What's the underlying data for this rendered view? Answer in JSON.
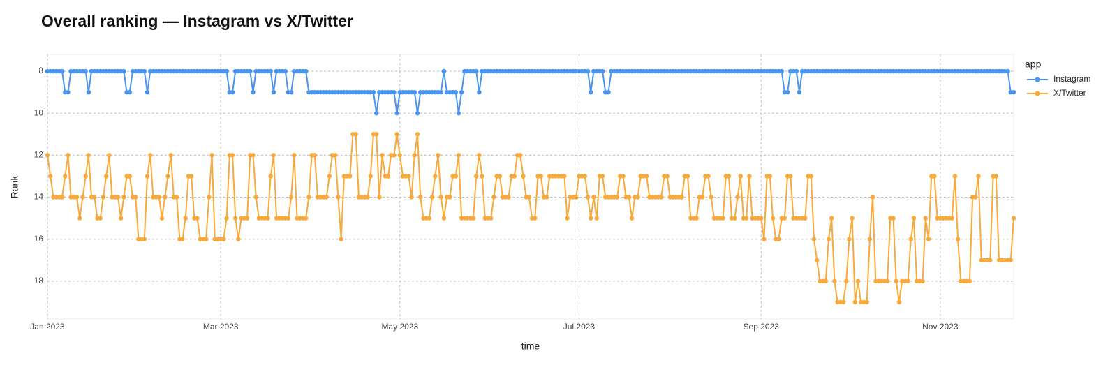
{
  "chart_data": {
    "type": "line",
    "title": "Overall ranking — Instagram vs X/Twitter",
    "x_label": "time",
    "y_label": "Rank",
    "legend_title": "app",
    "legend": "right",
    "xlim": [
      0,
      329
    ],
    "xticks": [
      {
        "value": 0,
        "label": "Jan 2023"
      },
      {
        "value": 59,
        "label": "Mar 2023"
      },
      {
        "value": 120,
        "label": "May 2023"
      },
      {
        "value": 181,
        "label": "Jul 2023"
      },
      {
        "value": 243,
        "label": "Sep 2023"
      },
      {
        "value": 304,
        "label": "Nov 2023"
      }
    ],
    "ylim": [
      7.2,
      19.8
    ],
    "y_reversed": true,
    "yticks": [
      8,
      10,
      12,
      14,
      16,
      18
    ],
    "grid": true,
    "series": [
      {
        "name": "Instagram",
        "color": "#4a94ee",
        "values": [
          8,
          8,
          8,
          8,
          8,
          8,
          9,
          9,
          8,
          8,
          8,
          8,
          8,
          8,
          9,
          8,
          8,
          8,
          8,
          8,
          8,
          8,
          8,
          8,
          8,
          8,
          8,
          9,
          9,
          8,
          8,
          8,
          8,
          8,
          9,
          8,
          8,
          8,
          8,
          8,
          8,
          8,
          8,
          8,
          8,
          8,
          8,
          8,
          8,
          8,
          8,
          8,
          8,
          8,
          8,
          8,
          8,
          8,
          8,
          8,
          8,
          8,
          9,
          9,
          8,
          8,
          8,
          8,
          8,
          8,
          9,
          8,
          8,
          8,
          8,
          8,
          8,
          9,
          8,
          8,
          8,
          8,
          9,
          9,
          8,
          8,
          8,
          8,
          8,
          9,
          9,
          9,
          9,
          9,
          9,
          9,
          9,
          9,
          9,
          9,
          9,
          9,
          9,
          9,
          9,
          9,
          9,
          9,
          9,
          9,
          9,
          9,
          10,
          9,
          9,
          9,
          9,
          9,
          9,
          10,
          9,
          9,
          9,
          9,
          9,
          9,
          10,
          9,
          9,
          9,
          9,
          9,
          9,
          9,
          9,
          8,
          9,
          9,
          9,
          9,
          10,
          9,
          8,
          8,
          8,
          8,
          8,
          9,
          8,
          8,
          8,
          8,
          8,
          8,
          8,
          8,
          8,
          8,
          8,
          8,
          8,
          8,
          8,
          8,
          8,
          8,
          8,
          8,
          8,
          8,
          8,
          8,
          8,
          8,
          8,
          8,
          8,
          8,
          8,
          8,
          8,
          8,
          8,
          8,
          8,
          9,
          8,
          8,
          8,
          8,
          9,
          9,
          8,
          8,
          8,
          8,
          8,
          8,
          8,
          8,
          8,
          8,
          8,
          8,
          8,
          8,
          8,
          8,
          8,
          8,
          8,
          8,
          8,
          8,
          8,
          8,
          8,
          8,
          8,
          8,
          8,
          8,
          8,
          8,
          8,
          8,
          8,
          8,
          8,
          8,
          8,
          8,
          8,
          8,
          8,
          8,
          8,
          8,
          8,
          8,
          8,
          8,
          8,
          8,
          8,
          8,
          8,
          8,
          8,
          8,
          8,
          9,
          9,
          8,
          8,
          8,
          9,
          8,
          8,
          8,
          8,
          8,
          8,
          8,
          8,
          8,
          8,
          8,
          8,
          8,
          8,
          8,
          8,
          8,
          8,
          8,
          8,
          8,
          8,
          8,
          8,
          8,
          8,
          8,
          8,
          8,
          8,
          8,
          8,
          8,
          8,
          8,
          8,
          8,
          8,
          8,
          8,
          8,
          8,
          8,
          8,
          8,
          8,
          8,
          8,
          8,
          8,
          8,
          8,
          8,
          8,
          8,
          8,
          8,
          8,
          8,
          8,
          8,
          8,
          8,
          8,
          8,
          8,
          8,
          8,
          8,
          8,
          8,
          9,
          9
        ]
      },
      {
        "name": "X/Twitter",
        "color": "#f7a93c",
        "values": [
          12,
          13,
          14,
          14,
          14,
          14,
          13,
          12,
          14,
          14,
          14,
          15,
          14,
          13,
          12,
          14,
          14,
          15,
          15,
          14,
          13,
          12,
          14,
          14,
          14,
          15,
          14,
          13,
          13,
          14,
          14,
          16,
          16,
          16,
          13,
          12,
          14,
          14,
          14,
          15,
          14,
          13,
          12,
          14,
          14,
          16,
          16,
          15,
          13,
          13,
          15,
          15,
          16,
          16,
          16,
          14,
          12,
          16,
          16,
          16,
          16,
          15,
          12,
          12,
          15,
          16,
          15,
          15,
          15,
          12,
          12,
          14,
          15,
          15,
          15,
          15,
          13,
          12,
          15,
          15,
          15,
          15,
          15,
          14,
          12,
          15,
          15,
          15,
          15,
          14,
          12,
          12,
          14,
          14,
          14,
          14,
          13,
          12,
          12,
          14,
          16,
          13,
          13,
          13,
          11,
          11,
          14,
          14,
          14,
          14,
          13,
          11,
          11,
          14,
          12,
          13,
          13,
          12,
          12,
          11,
          12,
          13,
          13,
          13,
          14,
          12,
          11,
          14,
          15,
          15,
          15,
          14,
          13,
          12,
          14,
          15,
          14,
          14,
          13,
          13,
          12,
          15,
          15,
          15,
          15,
          15,
          13,
          12,
          13,
          15,
          15,
          15,
          14,
          13,
          13,
          14,
          14,
          14,
          13,
          13,
          12,
          12,
          13,
          14,
          14,
          15,
          15,
          13,
          13,
          14,
          14,
          13,
          13,
          13,
          13,
          13,
          13,
          15,
          14,
          14,
          14,
          13,
          13,
          13,
          14,
          15,
          14,
          15,
          13,
          13,
          14,
          14,
          14,
          14,
          14,
          13,
          13,
          14,
          14,
          15,
          14,
          14,
          13,
          13,
          13,
          14,
          14,
          14,
          14,
          14,
          13,
          13,
          14,
          14,
          14,
          14,
          14,
          13,
          13,
          15,
          15,
          15,
          14,
          14,
          13,
          13,
          14,
          15,
          15,
          15,
          15,
          13,
          13,
          15,
          15,
          14,
          13,
          15,
          15,
          13,
          15,
          15,
          15,
          15,
          16,
          13,
          13,
          15,
          16,
          16,
          15,
          15,
          13,
          13,
          15,
          15,
          15,
          15,
          15,
          13,
          13,
          16,
          17,
          18,
          18,
          18,
          16,
          15,
          18,
          19,
          19,
          19,
          18,
          16,
          15,
          19,
          18,
          19,
          19,
          19,
          16,
          14,
          18,
          18,
          18,
          18,
          18,
          15,
          15,
          18,
          19,
          18,
          18,
          18,
          16,
          15,
          18,
          18,
          18,
          15,
          16,
          13,
          13,
          15,
          15,
          15,
          15,
          15,
          15,
          13,
          16,
          18,
          18,
          18,
          18,
          14,
          14,
          13,
          17,
          17,
          17,
          17,
          13,
          13,
          17,
          17,
          17,
          17,
          17,
          15
        ]
      }
    ]
  }
}
